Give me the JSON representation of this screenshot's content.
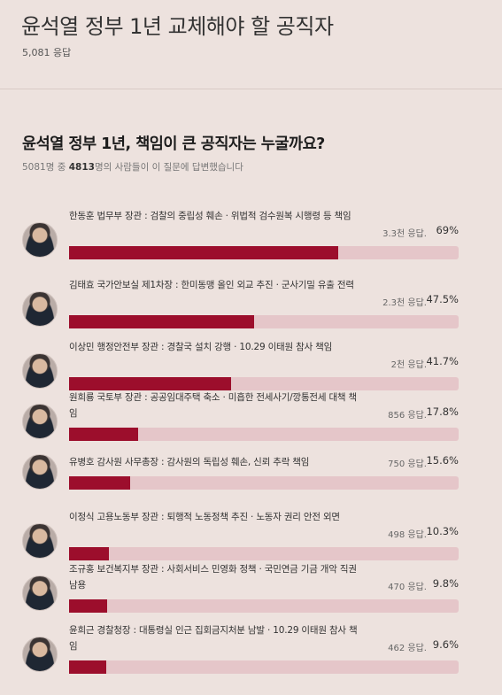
{
  "header": {
    "title": "윤석열 정부 1년 교체해야 할 공직자",
    "response_count": "5,081 응답"
  },
  "question": {
    "title": "윤석열 정부 1년, 책임이 큰 공직자는 누굴까요?",
    "subline_pre": "5081명 중 ",
    "subline_bold": "4813",
    "subline_post": "명의 사람들이 이 질문에 답변했습니다"
  },
  "options": [
    {
      "label": "한동훈 법무부 장관 : 검찰의 중립성 훼손 · 위법적 검수원복 시행령 등 책임",
      "responses": "3.3천 응답.",
      "percent": "69%",
      "share": 0.69,
      "avatar": "avatar-photo"
    },
    {
      "label": "김태효 국가안보실 제1차장 : 한미동맹 올인 외교 추진 · 군사기밀 유출 전력",
      "responses": "2.3천 응답.",
      "percent": "47.5%",
      "share": 0.475,
      "avatar": "avatar-photo"
    },
    {
      "label": "이상민 행정안전부 장관 : 경찰국 설치 강행 · 10.29 이태원 참사 책임",
      "responses": "2천 응답.",
      "percent": "41.7%",
      "share": 0.417,
      "avatar": "avatar-photo"
    },
    {
      "label": "원희룡 국토부 장관 : 공공임대주택 축소 · 미흡한 전세사기/깡통전세 대책 책임",
      "responses": "856 응답.",
      "percent": "17.8%",
      "share": 0.178,
      "avatar": "avatar-photo"
    },
    {
      "label": "유병호 감사원 사무총장 : 감사원의 독립성 훼손, 신뢰 추락 책임",
      "responses": "750 응답.",
      "percent": "15.6%",
      "share": 0.156,
      "avatar": "avatar-photo"
    },
    {
      "label": "이정식 고용노동부 장관 : 퇴행적 노동정책 추진 · 노동자 권리 안전 외면",
      "responses": "498 응답.",
      "percent": "10.3%",
      "share": 0.103,
      "avatar": "avatar-photo"
    },
    {
      "label": "조규홍 보건복지부 장관 : 사회서비스 민영화 정책 · 국민연금 기금 개악 직권남용",
      "responses": "470 응답.",
      "percent": "9.8%",
      "share": 0.098,
      "avatar": "avatar-photo"
    },
    {
      "label": "윤희근 경찰청장 : 대통령실 인근 집회금지처분 남발 · 10.29 이태원 참사 책임",
      "responses": "462 응답.",
      "percent": "9.6%",
      "share": 0.096,
      "avatar": "avatar-photo"
    }
  ],
  "colors": {
    "background": "#ede2de",
    "bar_fill": "#9c0e2c",
    "bar_track": "#e5c6c9"
  }
}
